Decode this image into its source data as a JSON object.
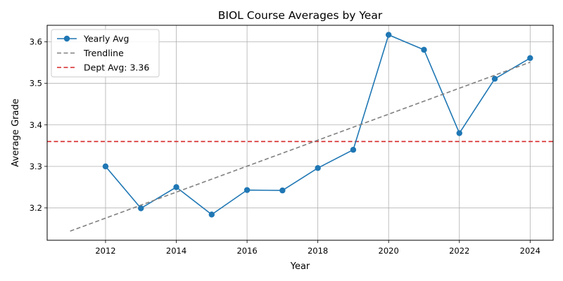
{
  "chart_data": {
    "type": "line",
    "title": "BIOL Course Averages by Year",
    "xlabel": "Year",
    "ylabel": "Average Grade",
    "xlim": [
      2010.35,
      2024.65
    ],
    "ylim": [
      3.122,
      3.64
    ],
    "x_ticks": [
      2012,
      2014,
      2016,
      2018,
      2020,
      2022,
      2024
    ],
    "y_ticks": [
      3.2,
      3.3,
      3.4,
      3.5,
      3.6
    ],
    "grid": true,
    "legend_position": "top-left",
    "series": [
      {
        "name": "Yearly Avg",
        "style": "solid-marker",
        "color": "#1f77b4",
        "x": [
          2012,
          2013,
          2014,
          2015,
          2016,
          2017,
          2018,
          2019,
          2020,
          2021,
          2022,
          2023,
          2024
        ],
        "y": [
          3.3,
          3.199,
          3.25,
          3.184,
          3.243,
          3.242,
          3.296,
          3.34,
          3.617,
          3.581,
          3.38,
          3.511,
          3.561
        ]
      },
      {
        "name": "Trendline",
        "style": "dashed",
        "color": "#808080",
        "x": [
          2011,
          2024
        ],
        "y": [
          3.144,
          3.551
        ]
      }
    ],
    "reference_lines": [
      {
        "name": "Dept Avg: 3.36",
        "axis": "y",
        "value": 3.36,
        "style": "dashed",
        "color": "#d62728"
      }
    ]
  }
}
